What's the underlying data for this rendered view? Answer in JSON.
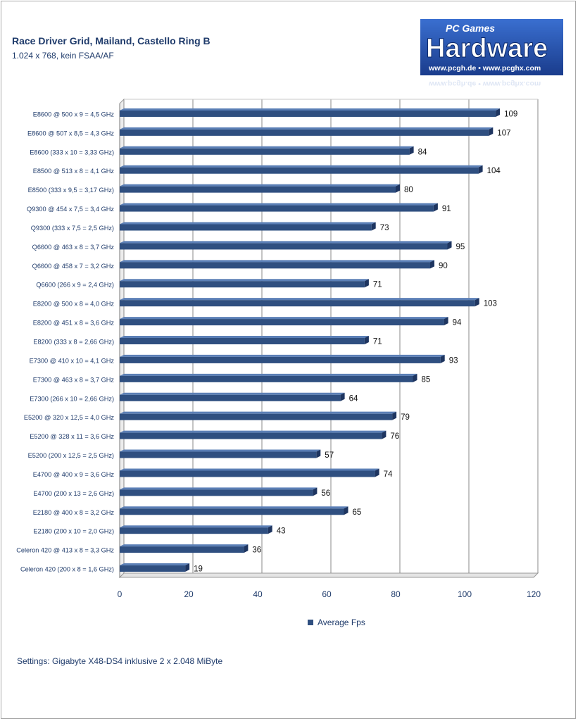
{
  "logo": {
    "brand_top": "PC Games",
    "brand_main": "Hardware",
    "brand_url": "www.pcgh.de • www.pcghx.com"
  },
  "chart_data": {
    "type": "bar",
    "orientation": "horizontal",
    "title": "Race Driver Grid, Mailand, Castello Ring B",
    "subtitle": "1.024 x 768,  kein FSAA/AF",
    "categories": [
      "E8600 @ 500 x 9 = 4,5 GHz",
      "E8600 @ 507 x 8,5 = 4,3 GHz",
      "E8600 (333 x 10 = 3,33 GHz)",
      "E8500 @ 513 x 8 = 4,1 GHz",
      "E8500 (333 x 9,5 = 3,17 GHz)",
      "Q9300 @ 454 x 7,5 = 3,4 GHz",
      "Q9300 (333 x 7,5 = 2,5 GHz)",
      "Q6600 @ 463 x 8 = 3,7 GHz",
      "Q6600 @ 458 x 7 = 3,2 GHz",
      "Q6600 (266 x 9 = 2,4 GHz)",
      "E8200 @ 500 x 8 = 4,0 GHz",
      "E8200 @ 451 x 8 = 3,6 GHz",
      "E8200 (333 x 8 = 2,66 GHz)",
      "E7300 @ 410 x 10 = 4,1 GHz",
      "E7300 @ 463 x 8 = 3,7 GHz",
      "E7300 (266 x 10 = 2,66 GHz)",
      "E5200 @ 320 x 12,5 = 4,0 GHz",
      "E5200 @ 328 x 11 = 3,6 GHz",
      "E5200 (200 x 12,5 = 2,5 GHz)",
      "E4700 @ 400 x 9 = 3,6 GHz",
      "E4700 (200 x 13 = 2,6 GHz)",
      "E2180 @ 400 x 8 = 3,2 GHz",
      "E2180 (200 x 10 = 2,0 GHz)",
      "Celeron 420 @ 413 x 8 = 3,3 GHz",
      "Celeron 420 (200 x 8 = 1,6 GHz)"
    ],
    "series": [
      {
        "name": "Average Fps",
        "values": [
          109,
          107,
          84,
          104,
          80,
          91,
          73,
          95,
          90,
          71,
          103,
          94,
          71,
          93,
          85,
          64,
          79,
          76,
          57,
          74,
          56,
          65,
          43,
          36,
          19
        ]
      }
    ],
    "xlim": [
      0,
      120
    ],
    "xticks": [
      0,
      20,
      40,
      60,
      80,
      100,
      120
    ],
    "grid": true,
    "legend_position": "bottom",
    "bar_color": "#2f4f80"
  },
  "footnote": "Settings: Gigabyte X48-DS4 inklusive 2 x 2.048  MiByte"
}
